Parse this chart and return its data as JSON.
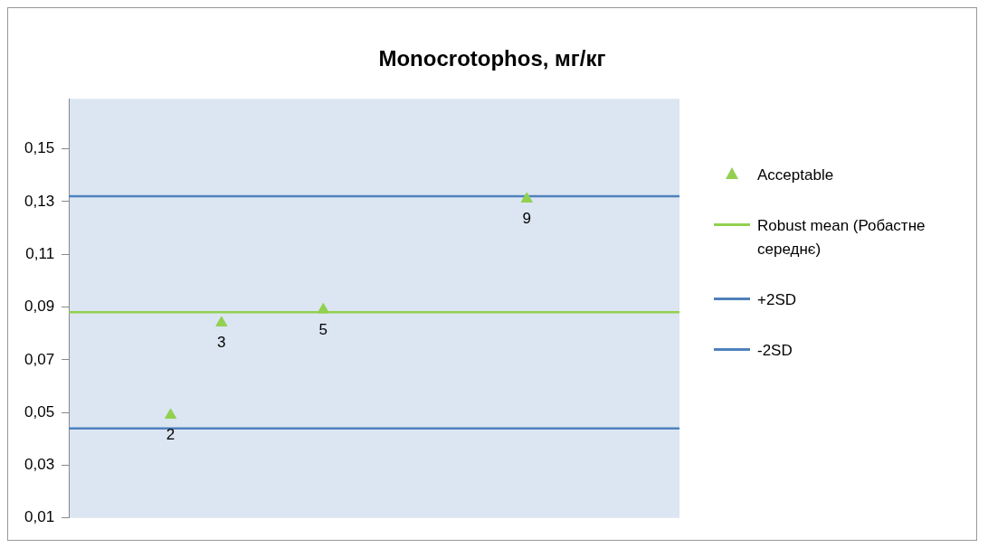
{
  "chart_data": {
    "type": "scatter",
    "title": "Monocrotophos, мг/кг",
    "categories": [
      null,
      null,
      null,
      null,
      null,
      null,
      null,
      null,
      null,
      null,
      null,
      null,
      null
    ],
    "series": [
      {
        "name": "Acceptable",
        "color": "#92d050",
        "marker": "triangle",
        "values": [
          null,
          null,
          0.049,
          0.084,
          null,
          0.089,
          null,
          null,
          null,
          0.131,
          null,
          null,
          null
        ]
      },
      {
        "name": "Robust mean (Робастне середнє)",
        "type": "line",
        "color": "#92d050",
        "marker": "none",
        "values": [
          0.088,
          0.088,
          0.088,
          0.088,
          0.088,
          0.088,
          0.088,
          0.088,
          0.088,
          0.088,
          0.088,
          0.088,
          0.088
        ]
      },
      {
        "name": "+2SD",
        "type": "line",
        "color": "#4f81bd",
        "marker": "none",
        "values": [
          0.132,
          0.132,
          0.132,
          0.132,
          0.132,
          0.132,
          0.132,
          0.132,
          0.132,
          0.132,
          0.132,
          0.132,
          0.132
        ]
      },
      {
        "name": "-2SD",
        "type": "line",
        "color": "#4f81bd",
        "marker": "none",
        "values": [
          0.044,
          0.044,
          0.044,
          0.044,
          0.044,
          0.044,
          0.044,
          0.044,
          0.044,
          0.044,
          0.044,
          0.044,
          0.044
        ]
      }
    ],
    "annotations": [
      {
        "text": "2",
        "y": 0.049
      },
      {
        "text": "3",
        "y": 0.084
      },
      {
        "text": "5",
        "y": 0.089
      },
      {
        "text": "9",
        "y": 0.131
      }
    ],
    "ylim": [
      0.01,
      0.169
    ],
    "yticks": [
      {
        "value": 0.01,
        "label": "0,01"
      },
      {
        "value": 0.03,
        "label": "0,03"
      },
      {
        "value": 0.05,
        "label": "0,05"
      },
      {
        "value": 0.07,
        "label": "0,07"
      },
      {
        "value": 0.09,
        "label": "0,09"
      },
      {
        "value": 0.11,
        "label": "0,11"
      },
      {
        "value": 0.13,
        "label": "0,13"
      },
      {
        "value": 0.15,
        "label": "0,15"
      }
    ],
    "grid": false,
    "legend": "right",
    "tick_labels": "y"
  }
}
